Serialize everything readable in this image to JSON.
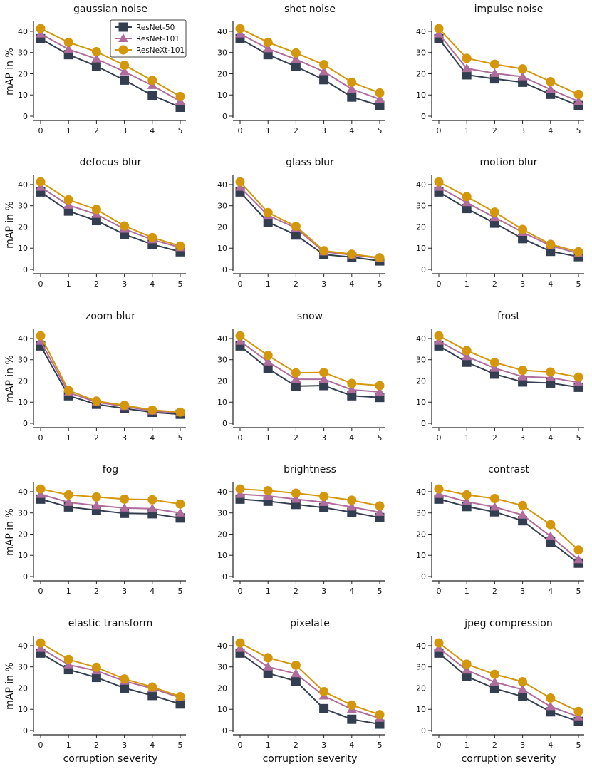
{
  "chart_data": {
    "type": "line",
    "shared": {
      "x": [
        0,
        1,
        2,
        3,
        4,
        5
      ],
      "x_tick_labels": [
        "0",
        "1",
        "2",
        "3",
        "4",
        "5"
      ],
      "y_ticks": [
        0,
        10,
        20,
        30,
        40
      ],
      "y_tick_labels": [
        "0",
        "10",
        "20",
        "30",
        "40"
      ],
      "ylim": [
        0,
        42
      ],
      "ylabel": "mAP in %",
      "xlabel": "corruption severity"
    },
    "legend": {
      "placement": "top-right of first panel",
      "entries": [
        {
          "name": "ResNet-50",
          "color": "#333f50",
          "marker": "square"
        },
        {
          "name": "ResNet-101",
          "color": "#b06c9c",
          "marker": "triangle"
        },
        {
          "name": "ResNeXt-101",
          "color": "#d4960b",
          "marker": "circle"
        }
      ]
    },
    "panels": [
      {
        "title": "gaussian noise",
        "series": [
          {
            "name": "ResNet-50",
            "values": [
              36.5,
              29.0,
              23.6,
              17.0,
              9.8,
              4.2
            ]
          },
          {
            "name": "ResNet-101",
            "values": [
              38.8,
              31.5,
              27.0,
              21.0,
              14.5,
              7.0
            ]
          },
          {
            "name": "ResNeXt-101",
            "values": [
              41.3,
              34.8,
              30.4,
              24.0,
              16.9,
              9.3
            ]
          }
        ]
      },
      {
        "title": "shot noise",
        "series": [
          {
            "name": "ResNet-50",
            "values": [
              36.5,
              29.0,
              23.4,
              17.2,
              9.0,
              5.0
            ]
          },
          {
            "name": "ResNet-101",
            "values": [
              38.8,
              31.8,
              26.8,
              21.0,
              12.8,
              8.0
            ]
          },
          {
            "name": "ResNeXt-101",
            "values": [
              41.3,
              34.8,
              29.8,
              24.3,
              16.0,
              11.0
            ]
          }
        ]
      },
      {
        "title": "impulse noise",
        "series": [
          {
            "name": "ResNet-50",
            "values": [
              36.5,
              19.5,
              17.6,
              16.0,
              10.3,
              5.0
            ]
          },
          {
            "name": "ResNet-101",
            "values": [
              38.8,
              22.5,
              20.2,
              18.6,
              12.6,
              7.0
            ]
          },
          {
            "name": "ResNeXt-101",
            "values": [
              41.3,
              27.3,
              24.5,
              22.3,
              16.3,
              10.3
            ]
          }
        ]
      },
      {
        "title": "defocus blur",
        "series": [
          {
            "name": "ResNet-50",
            "values": [
              36.5,
              27.5,
              23.0,
              16.5,
              11.8,
              8.3
            ]
          },
          {
            "name": "ResNet-101",
            "values": [
              38.8,
              30.3,
              26.0,
              19.0,
              14.0,
              10.3
            ]
          },
          {
            "name": "ResNeXt-101",
            "values": [
              41.3,
              32.8,
              28.3,
              20.5,
              15.0,
              11.0
            ]
          }
        ]
      },
      {
        "title": "glass blur",
        "series": [
          {
            "name": "ResNet-50",
            "values": [
              36.5,
              22.3,
              16.2,
              7.0,
              5.8,
              4.0
            ]
          },
          {
            "name": "ResNet-101",
            "values": [
              38.8,
              25.5,
              19.5,
              8.3,
              6.8,
              5.3
            ]
          },
          {
            "name": "ResNeXt-101",
            "values": [
              41.3,
              26.8,
              20.3,
              8.8,
              7.2,
              5.5
            ]
          }
        ]
      },
      {
        "title": "motion blur",
        "series": [
          {
            "name": "ResNet-50",
            "values": [
              36.5,
              28.7,
              21.8,
              14.5,
              8.5,
              6.0
            ]
          },
          {
            "name": "ResNet-101",
            "values": [
              38.8,
              31.5,
              24.5,
              17.5,
              11.2,
              7.5
            ]
          },
          {
            "name": "ResNeXt-101",
            "values": [
              41.3,
              34.3,
              27.0,
              18.8,
              11.8,
              8.3
            ]
          }
        ]
      },
      {
        "title": "zoom blur",
        "series": [
          {
            "name": "ResNet-50",
            "values": [
              36.5,
              13.0,
              9.0,
              7.0,
              5.2,
              4.3
            ]
          },
          {
            "name": "ResNet-101",
            "values": [
              38.8,
              14.5,
              10.0,
              8.0,
              5.8,
              5.0
            ]
          },
          {
            "name": "ResNeXt-101",
            "values": [
              41.3,
              15.5,
              10.5,
              8.5,
              6.3,
              5.3
            ]
          }
        ]
      },
      {
        "title": "snow",
        "series": [
          {
            "name": "ResNet-50",
            "values": [
              36.5,
              25.8,
              17.5,
              17.8,
              13.0,
              12.2
            ]
          },
          {
            "name": "ResNet-101",
            "values": [
              38.8,
              29.0,
              20.8,
              20.8,
              15.8,
              14.8
            ]
          },
          {
            "name": "ResNeXt-101",
            "values": [
              41.3,
              32.0,
              23.8,
              24.0,
              18.8,
              17.8
            ]
          }
        ]
      },
      {
        "title": "frost",
        "series": [
          {
            "name": "ResNet-50",
            "values": [
              36.5,
              28.8,
              23.2,
              19.5,
              19.0,
              17.0
            ]
          },
          {
            "name": "ResNet-101",
            "values": [
              38.8,
              31.5,
              26.0,
              22.0,
              21.5,
              19.3
            ]
          },
          {
            "name": "ResNeXt-101",
            "values": [
              41.3,
              34.3,
              28.7,
              25.0,
              24.2,
              21.8
            ]
          }
        ]
      },
      {
        "title": "fog",
        "series": [
          {
            "name": "ResNet-50",
            "values": [
              36.5,
              32.8,
              31.3,
              29.8,
              29.6,
              27.6
            ]
          },
          {
            "name": "ResNet-101",
            "values": [
              38.8,
              35.0,
              33.5,
              32.3,
              32.0,
              30.0
            ]
          },
          {
            "name": "ResNeXt-101",
            "values": [
              41.3,
              38.5,
              37.5,
              36.5,
              36.2,
              34.2
            ]
          }
        ]
      },
      {
        "title": "brightness",
        "series": [
          {
            "name": "ResNet-50",
            "values": [
              36.5,
              35.5,
              34.0,
              32.5,
              30.3,
              27.8
            ]
          },
          {
            "name": "ResNet-101",
            "values": [
              38.8,
              38.0,
              36.5,
              35.0,
              32.8,
              30.3
            ]
          },
          {
            "name": "ResNeXt-101",
            "values": [
              41.3,
              40.5,
              39.3,
              37.8,
              36.0,
              33.3
            ]
          }
        ]
      },
      {
        "title": "contrast",
        "series": [
          {
            "name": "ResNet-50",
            "values": [
              36.5,
              33.0,
              30.5,
              26.3,
              16.3,
              6.3
            ]
          },
          {
            "name": "ResNet-101",
            "values": [
              38.8,
              35.3,
              32.8,
              29.0,
              19.0,
              8.0
            ]
          },
          {
            "name": "ResNeXt-101",
            "values": [
              41.3,
              38.5,
              36.8,
              33.5,
              24.5,
              12.5
            ]
          }
        ]
      },
      {
        "title": "elastic transform",
        "series": [
          {
            "name": "ResNet-50",
            "values": [
              36.5,
              28.7,
              25.0,
              20.0,
              16.5,
              12.5
            ]
          },
          {
            "name": "ResNet-101",
            "values": [
              38.8,
              31.0,
              28.2,
              23.3,
              19.8,
              15.5
            ]
          },
          {
            "name": "ResNeXt-101",
            "values": [
              41.3,
              33.5,
              29.8,
              24.3,
              20.5,
              16.0
            ]
          }
        ]
      },
      {
        "title": "pixelate",
        "series": [
          {
            "name": "ResNet-50",
            "values": [
              36.5,
              27.0,
              23.3,
              10.3,
              5.3,
              3.0
            ]
          },
          {
            "name": "ResNet-101",
            "values": [
              38.8,
              30.0,
              26.8,
              16.3,
              10.0,
              5.8
            ]
          },
          {
            "name": "ResNeXt-101",
            "values": [
              41.3,
              34.3,
              30.8,
              18.3,
              12.0,
              7.5
            ]
          }
        ]
      },
      {
        "title": "jpeg compression",
        "series": [
          {
            "name": "ResNet-50",
            "values": [
              36.5,
              25.5,
              19.8,
              16.0,
              8.8,
              4.3
            ]
          },
          {
            "name": "ResNet-101",
            "values": [
              38.8,
              28.5,
              22.8,
              19.3,
              11.3,
              6.5
            ]
          },
          {
            "name": "ResNeXt-101",
            "values": [
              41.3,
              31.3,
              26.5,
              23.0,
              15.3,
              9.0
            ]
          }
        ]
      }
    ]
  }
}
